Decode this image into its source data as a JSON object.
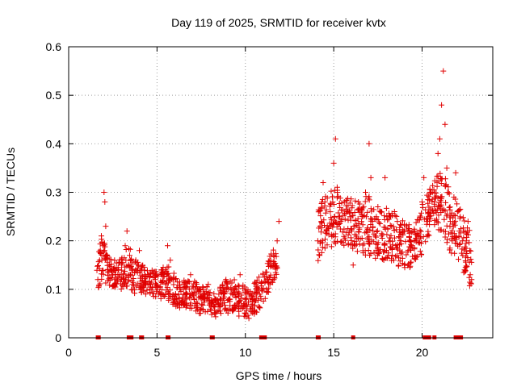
{
  "chart_data": {
    "type": "scatter",
    "title": "Day 119 of 2025, SRMTID for receiver kvtx",
    "xlabel": "GPS time / hours",
    "ylabel": "SRMTID / TECUs",
    "xlim": [
      0,
      24
    ],
    "ylim": [
      0,
      0.6
    ],
    "x_ticks": [
      0,
      5,
      10,
      15,
      20
    ],
    "x_tick_labels": [
      "0",
      "5",
      "10",
      "15",
      "20"
    ],
    "y_ticks": [
      0,
      0.1,
      0.2,
      0.3,
      0.4,
      0.5,
      0.6
    ],
    "y_tick_labels": [
      "0",
      "0.1",
      "0.2",
      "0.3",
      "0.4",
      "0.5",
      "0.6"
    ],
    "grid": true,
    "marker": "plus",
    "marker_color": "#e00000",
    "series": [
      {
        "name": "SRMTID",
        "points": [
          [
            1.65,
            0.12
          ],
          [
            1.75,
            0.16
          ],
          [
            1.85,
            0.21
          ],
          [
            1.95,
            0.19
          ],
          [
            2.0,
            0.3
          ],
          [
            2.05,
            0.28
          ],
          [
            2.1,
            0.23
          ],
          [
            2.15,
            0.17
          ],
          [
            2.2,
            0.14
          ],
          [
            2.3,
            0.15
          ],
          [
            2.45,
            0.13
          ],
          [
            2.6,
            0.12
          ],
          [
            2.8,
            0.14
          ],
          [
            3.0,
            0.15
          ],
          [
            3.1,
            0.13
          ],
          [
            3.2,
            0.19
          ],
          [
            3.3,
            0.22
          ],
          [
            3.45,
            0.17
          ],
          [
            3.6,
            0.11
          ],
          [
            3.8,
            0.16
          ],
          [
            4.0,
            0.18
          ],
          [
            4.15,
            0.14
          ],
          [
            4.3,
            0.11
          ],
          [
            4.5,
            0.13
          ],
          [
            4.7,
            0.1
          ],
          [
            4.9,
            0.12
          ],
          [
            5.1,
            0.09
          ],
          [
            5.3,
            0.14
          ],
          [
            5.5,
            0.11
          ],
          [
            5.6,
            0.19
          ],
          [
            5.75,
            0.16
          ],
          [
            5.9,
            0.12
          ],
          [
            6.1,
            0.08
          ],
          [
            6.3,
            0.1
          ],
          [
            6.5,
            0.07
          ],
          [
            6.7,
            0.09
          ],
          [
            6.9,
            0.13
          ],
          [
            7.1,
            0.08
          ],
          [
            7.3,
            0.1
          ],
          [
            7.5,
            0.06
          ],
          [
            7.7,
            0.08
          ],
          [
            7.9,
            0.11
          ],
          [
            8.1,
            0.07
          ],
          [
            8.3,
            0.05
          ],
          [
            8.5,
            0.09
          ],
          [
            8.7,
            0.07
          ],
          [
            8.9,
            0.12
          ],
          [
            9.1,
            0.08
          ],
          [
            9.3,
            0.06
          ],
          [
            9.5,
            0.1
          ],
          [
            9.7,
            0.13
          ],
          [
            9.9,
            0.07
          ],
          [
            10.0,
            0.05
          ],
          [
            10.2,
            0.04
          ],
          [
            10.4,
            0.08
          ],
          [
            10.6,
            0.11
          ],
          [
            10.8,
            0.09
          ],
          [
            11.0,
            0.13
          ],
          [
            11.2,
            0.1
          ],
          [
            11.4,
            0.15
          ],
          [
            11.6,
            0.17
          ],
          [
            11.8,
            0.2
          ],
          [
            11.9,
            0.24
          ],
          [
            14.1,
            0.2
          ],
          [
            14.2,
            0.17
          ],
          [
            14.3,
            0.24
          ],
          [
            14.4,
            0.32
          ],
          [
            14.5,
            0.28
          ],
          [
            14.6,
            0.22
          ],
          [
            14.8,
            0.26
          ],
          [
            15.0,
            0.36
          ],
          [
            15.1,
            0.41
          ],
          [
            15.2,
            0.3
          ],
          [
            15.4,
            0.24
          ],
          [
            15.6,
            0.28
          ],
          [
            15.8,
            0.26
          ],
          [
            16.0,
            0.22
          ],
          [
            16.1,
            0.15
          ],
          [
            16.2,
            0.19
          ],
          [
            16.4,
            0.28
          ],
          [
            16.6,
            0.25
          ],
          [
            16.8,
            0.3
          ],
          [
            17.0,
            0.4
          ],
          [
            17.1,
            0.33
          ],
          [
            17.2,
            0.24
          ],
          [
            17.4,
            0.18
          ],
          [
            17.5,
            0.27
          ],
          [
            17.7,
            0.21
          ],
          [
            17.9,
            0.33
          ],
          [
            18.0,
            0.25
          ],
          [
            18.2,
            0.2
          ],
          [
            18.4,
            0.16
          ],
          [
            18.6,
            0.24
          ],
          [
            18.8,
            0.2
          ],
          [
            19.0,
            0.15
          ],
          [
            19.2,
            0.22
          ],
          [
            19.4,
            0.19
          ],
          [
            19.6,
            0.17
          ],
          [
            19.8,
            0.21
          ],
          [
            20.0,
            0.28
          ],
          [
            20.1,
            0.33
          ],
          [
            20.3,
            0.24
          ],
          [
            20.5,
            0.3
          ],
          [
            20.7,
            0.28
          ],
          [
            20.9,
            0.38
          ],
          [
            21.0,
            0.41
          ],
          [
            21.1,
            0.48
          ],
          [
            21.2,
            0.55
          ],
          [
            21.3,
            0.44
          ],
          [
            21.4,
            0.35
          ],
          [
            21.5,
            0.3
          ],
          [
            21.6,
            0.24
          ],
          [
            21.7,
            0.2
          ],
          [
            21.8,
            0.29
          ],
          [
            21.9,
            0.34
          ],
          [
            22.0,
            0.26
          ],
          [
            22.1,
            0.22
          ],
          [
            22.3,
            0.17
          ],
          [
            22.4,
            0.14
          ],
          [
            22.5,
            0.2
          ],
          [
            22.6,
            0.24
          ],
          [
            22.7,
            0.18
          ],
          [
            22.8,
            0.12
          ]
        ],
        "envelope": [
          [
            1.6,
            0.1,
            0.16
          ],
          [
            1.9,
            0.11,
            0.22
          ],
          [
            2.2,
            0.11,
            0.17
          ],
          [
            2.6,
            0.1,
            0.16
          ],
          [
            3.0,
            0.1,
            0.17
          ],
          [
            3.4,
            0.1,
            0.19
          ],
          [
            3.8,
            0.09,
            0.16
          ],
          [
            4.2,
            0.09,
            0.15
          ],
          [
            4.6,
            0.08,
            0.14
          ],
          [
            5.0,
            0.08,
            0.14
          ],
          [
            5.4,
            0.08,
            0.15
          ],
          [
            5.8,
            0.07,
            0.15
          ],
          [
            6.2,
            0.06,
            0.12
          ],
          [
            6.6,
            0.06,
            0.12
          ],
          [
            7.0,
            0.06,
            0.12
          ],
          [
            7.4,
            0.05,
            0.11
          ],
          [
            7.8,
            0.05,
            0.11
          ],
          [
            8.2,
            0.04,
            0.1
          ],
          [
            8.6,
            0.05,
            0.11
          ],
          [
            9.0,
            0.05,
            0.12
          ],
          [
            9.4,
            0.05,
            0.12
          ],
          [
            9.8,
            0.04,
            0.11
          ],
          [
            10.2,
            0.04,
            0.1
          ],
          [
            10.6,
            0.05,
            0.12
          ],
          [
            11.0,
            0.07,
            0.14
          ],
          [
            11.4,
            0.1,
            0.17
          ],
          [
            11.8,
            0.13,
            0.2
          ],
          [
            14.1,
            0.15,
            0.26
          ],
          [
            14.5,
            0.18,
            0.3
          ],
          [
            15.0,
            0.19,
            0.32
          ],
          [
            15.5,
            0.19,
            0.3
          ],
          [
            16.0,
            0.18,
            0.29
          ],
          [
            16.5,
            0.17,
            0.28
          ],
          [
            17.0,
            0.17,
            0.3
          ],
          [
            17.5,
            0.16,
            0.28
          ],
          [
            18.0,
            0.16,
            0.27
          ],
          [
            18.5,
            0.15,
            0.26
          ],
          [
            19.0,
            0.14,
            0.24
          ],
          [
            19.5,
            0.14,
            0.23
          ],
          [
            20.0,
            0.17,
            0.28
          ],
          [
            20.5,
            0.22,
            0.31
          ],
          [
            21.0,
            0.22,
            0.35
          ],
          [
            21.5,
            0.18,
            0.32
          ],
          [
            22.0,
            0.16,
            0.28
          ],
          [
            22.5,
            0.12,
            0.24
          ],
          [
            22.8,
            0.1,
            0.22
          ]
        ],
        "zero_points": [
          1.65,
          1.7,
          3.4,
          3.55,
          4.1,
          4.15,
          5.6,
          5.65,
          8.1,
          8.15,
          10.9,
          11.0,
          11.1,
          14.1,
          14.15,
          16.1,
          20.15,
          20.25,
          20.3,
          20.4,
          20.7,
          21.9,
          22.0,
          22.1,
          22.2
        ]
      }
    ]
  }
}
